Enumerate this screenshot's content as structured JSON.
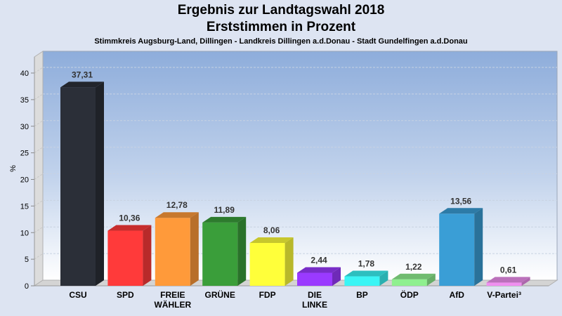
{
  "header": {
    "title": "Ergebnis zur Landtagswahl 2018",
    "subtitle": "Erststimmen in Prozent",
    "region": "Stimmkreis Augsburg-Land, Dillingen - Landkreis Dillingen a.d.Donau - Stadt Gundelfingen a.d.Donau"
  },
  "chart_data": {
    "type": "bar",
    "title": "Ergebnis zur Landtagswahl 2018",
    "subtitle": "Erststimmen in Prozent",
    "xlabel": "",
    "ylabel": "%",
    "ylim": [
      0,
      40
    ],
    "yticks": [
      0,
      5,
      10,
      15,
      20,
      25,
      30,
      35,
      40
    ],
    "grid": true,
    "legend": "none",
    "style": "3d",
    "categories": [
      {
        "label": [
          "CSU"
        ],
        "value": 37.31,
        "display": "37,31",
        "color": "#2b2f38"
      },
      {
        "label": [
          "SPD"
        ],
        "value": 10.36,
        "display": "10,36",
        "color": "#ff3a3a"
      },
      {
        "label": [
          "FREIE",
          "WÄHLER"
        ],
        "value": 12.78,
        "display": "12,78",
        "color": "#ff9a3a"
      },
      {
        "label": [
          "GRÜNE"
        ],
        "value": 11.89,
        "display": "11,89",
        "color": "#3a9e3a"
      },
      {
        "label": [
          "FDP"
        ],
        "value": 8.06,
        "display": "8,06",
        "color": "#ffff3a"
      },
      {
        "label": [
          "DIE",
          "LINKE"
        ],
        "value": 2.44,
        "display": "2,44",
        "color": "#9a3aff"
      },
      {
        "label": [
          "BP"
        ],
        "value": 1.78,
        "display": "1,78",
        "color": "#3af5f5"
      },
      {
        "label": [
          "ÖDP"
        ],
        "value": 1.22,
        "display": "1,22",
        "color": "#8ff08f"
      },
      {
        "label": [
          "AfD"
        ],
        "value": 13.56,
        "display": "13,56",
        "color": "#3a9ed6"
      },
      {
        "label": [
          "V-Partei³"
        ],
        "value": 0.61,
        "display": "0,61",
        "color": "#f08ff0"
      }
    ]
  }
}
